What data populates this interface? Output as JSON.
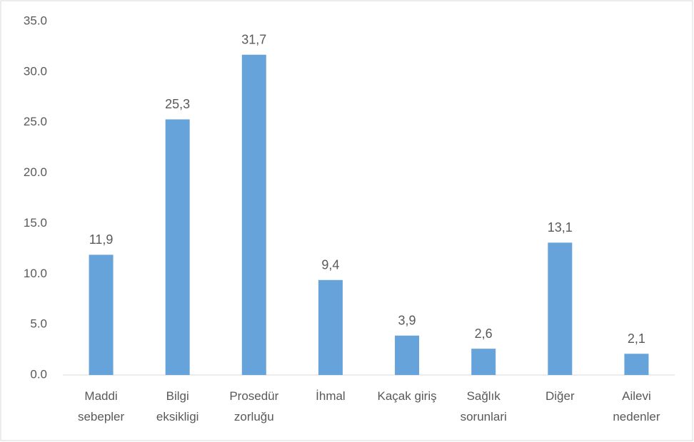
{
  "chart_data": {
    "type": "bar",
    "categories": [
      [
        "Maddi",
        "sebepler"
      ],
      [
        "Bilgi",
        "eksikligi"
      ],
      [
        "Prosedür",
        "zorluğu"
      ],
      [
        "İhmal"
      ],
      [
        "Kaçak giriş"
      ],
      [
        "Sağlık",
        "sorunlari"
      ],
      [
        "Diğer"
      ],
      [
        "Ailevi",
        "nedenler"
      ]
    ],
    "values": [
      11.9,
      25.3,
      31.7,
      9.4,
      3.9,
      2.6,
      13.1,
      2.1
    ],
    "value_labels": [
      "11,9",
      "25,3",
      "31,7",
      "9,4",
      "3,9",
      "2,6",
      "13,1",
      "2,1"
    ],
    "color": "#67a3db",
    "ylim": [
      0,
      35
    ],
    "yticks": [
      {
        "value": 0,
        "label": "0.0"
      },
      {
        "value": 5,
        "label": "5.0"
      },
      {
        "value": 10,
        "label": "10.0"
      },
      {
        "value": 15,
        "label": "15.0"
      },
      {
        "value": 20,
        "label": "20.0"
      },
      {
        "value": 25,
        "label": "25.0"
      },
      {
        "value": 30,
        "label": "30.0"
      },
      {
        "value": 35,
        "label": "35.0"
      }
    ],
    "grid": false
  }
}
